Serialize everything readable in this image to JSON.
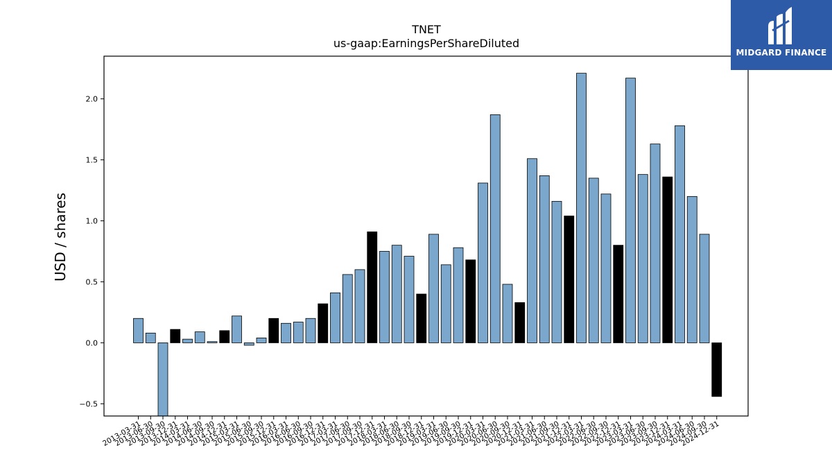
{
  "chart_data": {
    "type": "bar",
    "title": "TNET",
    "subtitle": "us-gaap:EarningsPerShareDiluted",
    "ylabel": "USD / shares",
    "xlabel": "",
    "ylim": [
      -0.6,
      2.35
    ],
    "yticks": [
      -0.5,
      0.0,
      0.5,
      1.0,
      1.5,
      2.0
    ],
    "ytick_labels": [
      "−0.5",
      "0.0",
      "0.5",
      "1.0",
      "1.5",
      "2.0"
    ],
    "grid": false,
    "colors": {
      "quarter": "#7ba7cc",
      "annual": "#000000",
      "edge": "#000000"
    },
    "categories": [
      "2013-03-31",
      "2013-06-30",
      "2013-09-30",
      "2013-12-31",
      "2014-03-31",
      "2014-06-30",
      "2014-09-30",
      "2014-12-31",
      "2015-03-31",
      "2015-06-30",
      "2015-09-30",
      "2015-12-31",
      "2016-03-31",
      "2016-06-30",
      "2016-09-30",
      "2016-12-31",
      "2017-03-31",
      "2017-06-30",
      "2017-09-30",
      "2017-12-31",
      "2018-03-31",
      "2018-06-30",
      "2018-09-30",
      "2018-12-31",
      "2019-03-31",
      "2019-06-30",
      "2019-09-30",
      "2019-12-31",
      "2020-03-31",
      "2020-06-30",
      "2020-09-30",
      "2020-12-31",
      "2021-03-31",
      "2021-06-30",
      "2021-09-30",
      "2021-12-31",
      "2022-03-31",
      "2022-06-30",
      "2022-09-30",
      "2022-12-31",
      "2023-03-31",
      "2023-06-30",
      "2023-09-30",
      "2023-12-31",
      "2024-03-31",
      "2024-06-30",
      "2024-09-30",
      "2024-12-31"
    ],
    "values": [
      0.2,
      0.08,
      -0.6,
      0.11,
      0.03,
      0.09,
      0.01,
      0.1,
      0.22,
      -0.02,
      0.04,
      0.2,
      0.16,
      0.17,
      0.2,
      0.32,
      0.41,
      0.56,
      0.6,
      0.91,
      0.75,
      0.8,
      0.71,
      0.4,
      0.89,
      0.64,
      0.78,
      0.68,
      1.31,
      1.87,
      0.48,
      0.33,
      1.51,
      1.37,
      1.16,
      1.04,
      2.21,
      1.35,
      1.22,
      0.8,
      2.17,
      1.38,
      1.63,
      1.36,
      1.78,
      1.2,
      0.89,
      -0.44
    ],
    "annual": [
      false,
      false,
      false,
      true,
      false,
      false,
      false,
      true,
      false,
      false,
      false,
      true,
      false,
      false,
      false,
      true,
      false,
      false,
      false,
      true,
      false,
      false,
      false,
      true,
      false,
      false,
      false,
      true,
      false,
      false,
      false,
      true,
      false,
      false,
      false,
      true,
      false,
      false,
      false,
      true,
      false,
      false,
      false,
      true,
      false,
      false,
      false,
      true
    ]
  },
  "logo": {
    "text": "MIDGARD FINANCE",
    "icon": "midgard-logo-icon"
  }
}
